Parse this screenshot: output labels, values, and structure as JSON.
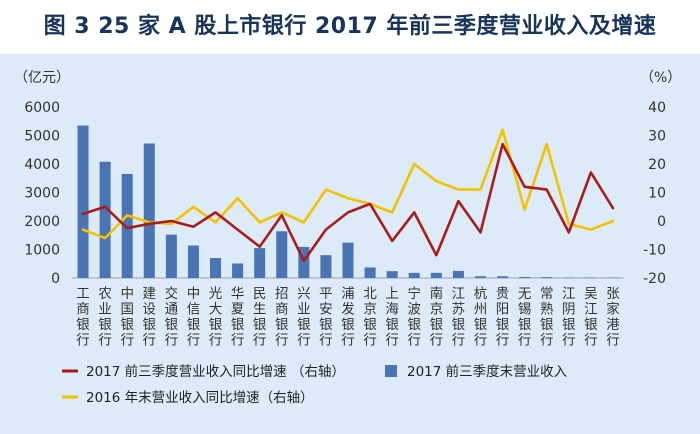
{
  "title": "图 3  25 家 A 股上市银行 2017 年前三季度营业收入及增速",
  "chart_data": {
    "type": "bar",
    "left_unit": "（亿元）",
    "right_unit": "（%）",
    "ylim_left": [
      0,
      6000
    ],
    "ylim_right": [
      -20,
      40
    ],
    "yticks_left": [
      "6000",
      "5000",
      "4000",
      "3000",
      "2000",
      "1000",
      "0"
    ],
    "yticks_right": [
      "40",
      "30",
      "20",
      "10",
      "0",
      "-10",
      "-20"
    ],
    "categories": [
      "工商银行",
      "农业银行",
      "中国银行",
      "建设银行",
      "交通银行",
      "中信银行",
      "光大银行",
      "华夏银行",
      "民生银行",
      "招商银行",
      "兴业银行",
      "平安银行",
      "浦发银行",
      "北京银行",
      "上海银行",
      "宁波银行",
      "南京银行",
      "江苏银行",
      "杭州银行",
      "贵阳银行",
      "无锡银行",
      "常熟银行",
      "江阴银行",
      "吴江银行",
      "张家港行"
    ],
    "series": [
      {
        "name": "2017 前三季度末营业收入",
        "kind": "bar",
        "axis": "left",
        "color": "#4a74b4",
        "values": [
          5350,
          4080,
          3650,
          4720,
          1520,
          1140,
          700,
          510,
          1050,
          1640,
          1090,
          800,
          1240,
          370,
          240,
          180,
          180,
          250,
          60,
          60,
          35,
          30,
          15,
          15,
          15
        ]
      },
      {
        "name": "2017 前三季度营业收入同比增速（右轴）",
        "kind": "line",
        "axis": "right",
        "color": "#a81c1c",
        "values": [
          2.5,
          5,
          -2.5,
          -1,
          0,
          -2,
          3,
          -3,
          -9,
          2,
          -14,
          -3,
          3,
          6,
          -7,
          3,
          -12,
          7,
          -4,
          27,
          12,
          11,
          -4,
          17,
          4.5
        ]
      },
      {
        "name": "2016 年末营业收入同比增速（右轴）",
        "kind": "line",
        "axis": "right",
        "color": "#f5c200",
        "values": [
          -3,
          -6,
          2,
          -0.5,
          -1,
          5,
          -0.5,
          8,
          -0.5,
          3,
          -0.5,
          11,
          8,
          6,
          3,
          20,
          14,
          11,
          11,
          32,
          4,
          27,
          -1,
          -3,
          0
        ]
      }
    ],
    "legend": [
      {
        "label": "2017 前三季度营业收入同比增速 （右轴）",
        "color": "#a81c1c",
        "type": "line"
      },
      {
        "label": "2017 前三季度末营业收入",
        "color": "#4a74b4",
        "type": "box"
      },
      {
        "label": "2016 年末营业收入同比增速（右轴）",
        "color": "#f5c200",
        "type": "line"
      }
    ]
  }
}
